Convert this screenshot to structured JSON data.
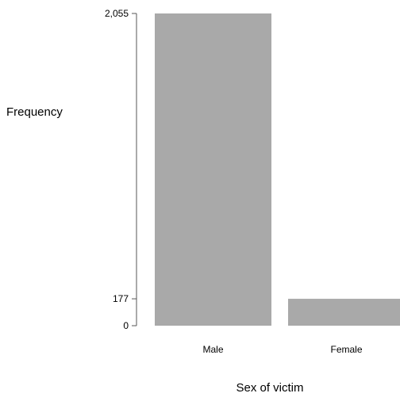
{
  "chart_data": {
    "type": "bar",
    "title": "",
    "xlabel": "Sex of victim",
    "ylabel": "Frequency",
    "categories": [
      "Male",
      "Female"
    ],
    "values": [
      2055,
      177
    ],
    "yticks": [
      0,
      177,
      2055
    ],
    "ytick_labels": [
      "0",
      "177",
      "2,055"
    ],
    "ylim": [
      0,
      2055
    ],
    "grid": false,
    "bar_color": "#a9a9a9",
    "axis_color": "#555555"
  }
}
